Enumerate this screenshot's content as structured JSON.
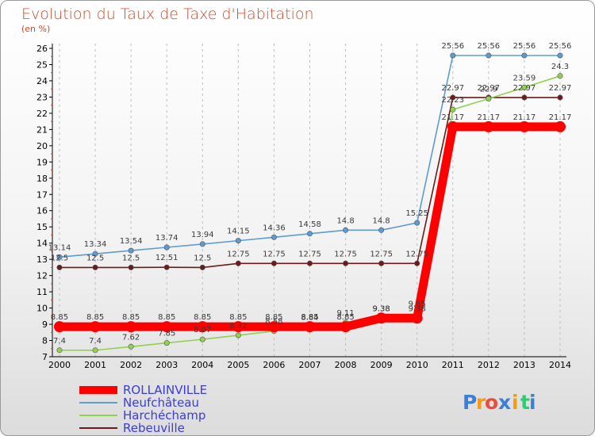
{
  "chart_data": {
    "type": "line",
    "title": "Evolution du Taux de Taxe d'Habitation",
    "unit_label": "(en %)",
    "x": [
      "2000",
      "2001",
      "2002",
      "2003",
      "2004",
      "2005",
      "2006",
      "2007",
      "2008",
      "2009",
      "2010",
      "2011",
      "2012",
      "2013",
      "2014"
    ],
    "ylim": [
      7,
      26
    ],
    "y_ticks": [
      7,
      8,
      9,
      10,
      11,
      12,
      13,
      14,
      15,
      16,
      17,
      18,
      19,
      20,
      21,
      22,
      23,
      24,
      25,
      26
    ],
    "grid": "vertical-dashed",
    "legend_position": "bottom-left",
    "series": [
      {
        "name": "ROLLAINVILLE",
        "color": "#ff0000",
        "values": [
          8.85,
          8.85,
          8.85,
          8.85,
          8.85,
          8.85,
          8.85,
          8.85,
          8.85,
          9.38,
          9.38,
          21.17,
          21.17,
          21.17,
          21.17
        ],
        "labels": [
          "8.85",
          "8.85",
          "8.85",
          "8.85",
          "8.85",
          "8.85",
          "8.85",
          "8.85",
          "8.85",
          "9.38",
          "9.38",
          "21.17",
          "21.17",
          "21.17",
          "21.17"
        ]
      },
      {
        "name": "Neufchâteau",
        "color": "#5f9bd1",
        "values": [
          13.14,
          13.34,
          13.54,
          13.74,
          13.94,
          14.15,
          14.36,
          14.58,
          14.8,
          14.8,
          15.25,
          25.56,
          25.56,
          25.56,
          25.56
        ],
        "labels": [
          "13.14",
          "13.34",
          "13.54",
          "13.74",
          "13.94",
          "14.15",
          "14.36",
          "14.58",
          "14.8",
          "14.8",
          "15.25",
          "25.56",
          "25.56",
          "25.56",
          "25.56"
        ]
      },
      {
        "name": "Harchéchamp",
        "color": "#92d050",
        "values": [
          7.4,
          7.4,
          7.62,
          7.85,
          8.07,
          8.32,
          8.58,
          8.84,
          9.11,
          9.38,
          9.65,
          22.23,
          22.9,
          23.59,
          24.3
        ],
        "labels": [
          "7.4",
          "7.4",
          "7.62",
          "7.85",
          "8.07",
          "8.32",
          "8.58",
          "8.84",
          "9.11",
          "9.38",
          "9.65",
          "22.23",
          "22.9",
          "23.59",
          "24.3"
        ]
      },
      {
        "name": "Rebeuville",
        "color": "#6b1b1b",
        "values": [
          12.5,
          12.5,
          12.5,
          12.51,
          12.5,
          12.75,
          12.75,
          12.75,
          12.75,
          12.75,
          12.75,
          22.97,
          22.97,
          22.97,
          22.97
        ],
        "labels": [
          "12.5",
          "12.5",
          "12.5",
          "12.51",
          "12.5",
          "12.75",
          "12.75",
          "12.75",
          "12.75",
          "12.75",
          "12.75",
          "22.97",
          "22.97",
          "22.97",
          "22.97"
        ]
      }
    ]
  },
  "brand": {
    "letters": [
      "P",
      "r",
      "o",
      "x",
      "i",
      "t",
      "i"
    ],
    "colors": [
      "#3d7fd6",
      "#f39c12",
      "#e74c3c",
      "#3d7fd6",
      "#f39c12",
      "#2ecc71",
      "#3d7fd6"
    ]
  }
}
